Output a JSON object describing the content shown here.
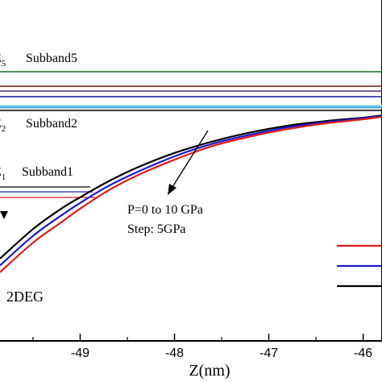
{
  "chart_data": {
    "type": "line",
    "xlabel": "Z(nm)",
    "ylabel": "",
    "title": "",
    "xlim": [
      -49.85,
      -45.8
    ],
    "x_ticks": [
      -49,
      -48,
      -47,
      -46
    ],
    "x_tick_labels": [
      "-49",
      "-48",
      "-47",
      "-46"
    ],
    "grid": false,
    "legend_position": "right",
    "annotation_line1": "P=0 to 10 GPa",
    "annotation_line2": "Step: 5GPa",
    "label_2deg": "2DEG",
    "subband_levels": [
      {
        "symbol": "E",
        "index": "5",
        "name": "Subband5",
        "color": "#3e7e3e"
      },
      {
        "symbol": "",
        "index": "",
        "name": "",
        "color": "#8a3a2a"
      },
      {
        "symbol": "",
        "index": "",
        "name": "",
        "color": "#6a4a8a"
      },
      {
        "symbol": "",
        "index": "",
        "name": "",
        "color": "#3a3aaa"
      },
      {
        "symbol": "E",
        "index": "2",
        "name": "Subband2",
        "color": "#40b0d8"
      },
      {
        "symbol": "E",
        "index": "1",
        "name": "Subband1",
        "color": "#222222"
      }
    ],
    "series": [
      {
        "color": "#000000",
        "x": [
          -49.85,
          -49.5,
          -49.2,
          -49.0,
          -48.7,
          -48.4,
          -48.0,
          -47.6,
          -47.2,
          -46.8,
          -46.4,
          -46.0,
          -45.8
        ],
        "y": [
          0.05,
          0.18,
          0.27,
          0.32,
          0.39,
          0.45,
          0.515,
          0.565,
          0.605,
          0.635,
          0.655,
          0.67,
          0.68
        ]
      },
      {
        "color": "#1a1acc",
        "x": [
          -49.85,
          -49.5,
          -49.2,
          -49.0,
          -48.7,
          -48.4,
          -48.0,
          -47.6,
          -47.2,
          -46.8,
          -46.4,
          -46.0,
          -45.8
        ],
        "y": [
          0.02,
          0.15,
          0.24,
          0.295,
          0.37,
          0.43,
          0.5,
          0.555,
          0.595,
          0.628,
          0.65,
          0.667,
          0.677
        ]
      },
      {
        "color": "#e01c1c",
        "x": [
          -49.85,
          -49.5,
          -49.2,
          -49.0,
          -48.7,
          -48.4,
          -48.0,
          -47.6,
          -47.2,
          -46.8,
          -46.4,
          -46.0,
          -45.8
        ],
        "y": [
          -0.01,
          0.12,
          0.21,
          0.27,
          0.35,
          0.415,
          0.485,
          0.545,
          0.587,
          0.62,
          0.645,
          0.663,
          0.674
        ]
      }
    ]
  }
}
